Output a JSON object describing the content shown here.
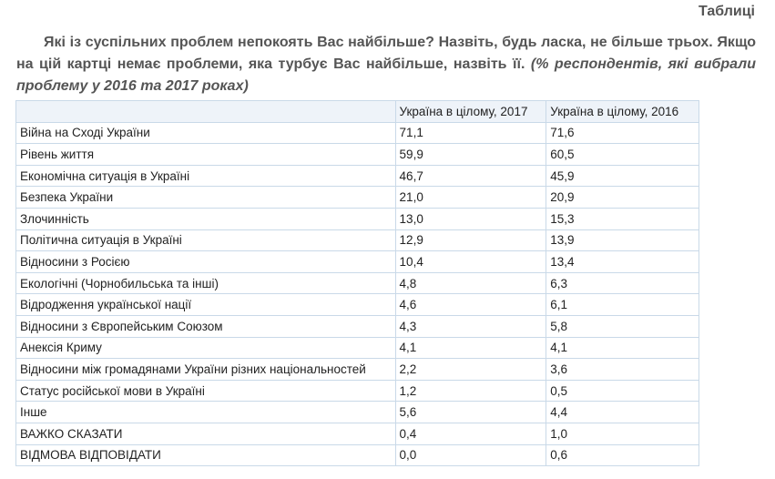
{
  "section_label": "Таблиці",
  "question": {
    "text": "Які із суспільних проблем непокоять Вас найбільше? Назвіть, будь ласка, не більше трьох. Якщо на цій картці немає проблеми, яка турбує Вас найбільше, назвіть її.",
    "note": "(% респондентів, які вибрали проблему у 2016 та 2017 роках)"
  },
  "table": {
    "headers": [
      "",
      "Україна в цілому, 2017",
      "Україна в цілому, 2016"
    ],
    "rows": [
      {
        "label": "Війна на Сході України",
        "v2017": "71,1",
        "v2016": "71,6"
      },
      {
        "label": "Рівень життя",
        "v2017": "59,9",
        "v2016": "60,5"
      },
      {
        "label": "Економічна ситуація в Україні",
        "v2017": "46,7",
        "v2016": "45,9"
      },
      {
        "label": "Безпека України",
        "v2017": "21,0",
        "v2016": "20,9"
      },
      {
        "label": "Злочинність",
        "v2017": "13,0",
        "v2016": "15,3"
      },
      {
        "label": "Політична ситуація в Україні",
        "v2017": "12,9",
        "v2016": "13,9"
      },
      {
        "label": "Відносини з Росією",
        "v2017": "10,4",
        "v2016": "13,4"
      },
      {
        "label": "Екологічні (Чорнобильська та інші)",
        "v2017": "4,8",
        "v2016": "6,3"
      },
      {
        "label": "Відродження української нації",
        "v2017": "4,6",
        "v2016": "6,1"
      },
      {
        "label": "Відносини з Європейським Союзом",
        "v2017": "4,3",
        "v2016": "5,8"
      },
      {
        "label": "Анексія Криму",
        "v2017": "4,1",
        "v2016": "4,1"
      },
      {
        "label": "Відносини між громадянами України різних національностей",
        "v2017": "2,2",
        "v2016": "3,6"
      },
      {
        "label": "Статус російської мови в Україні",
        "v2017": "1,2",
        "v2016": "0,5"
      },
      {
        "label": "Інше",
        "v2017": "5,6",
        "v2016": "4,4"
      },
      {
        "label": "ВАЖКО СКАЗАТИ",
        "v2017": "0,4",
        "v2016": "1,0"
      },
      {
        "label": "ВІДМОВА ВІДПОВІДАТИ",
        "v2017": "0,0",
        "v2016": "0,6"
      }
    ]
  },
  "colors": {
    "heading_text": "#555555",
    "table_border": "#c9d9e8",
    "header_bg": "#eef3f9",
    "cell_text": "#222222"
  }
}
